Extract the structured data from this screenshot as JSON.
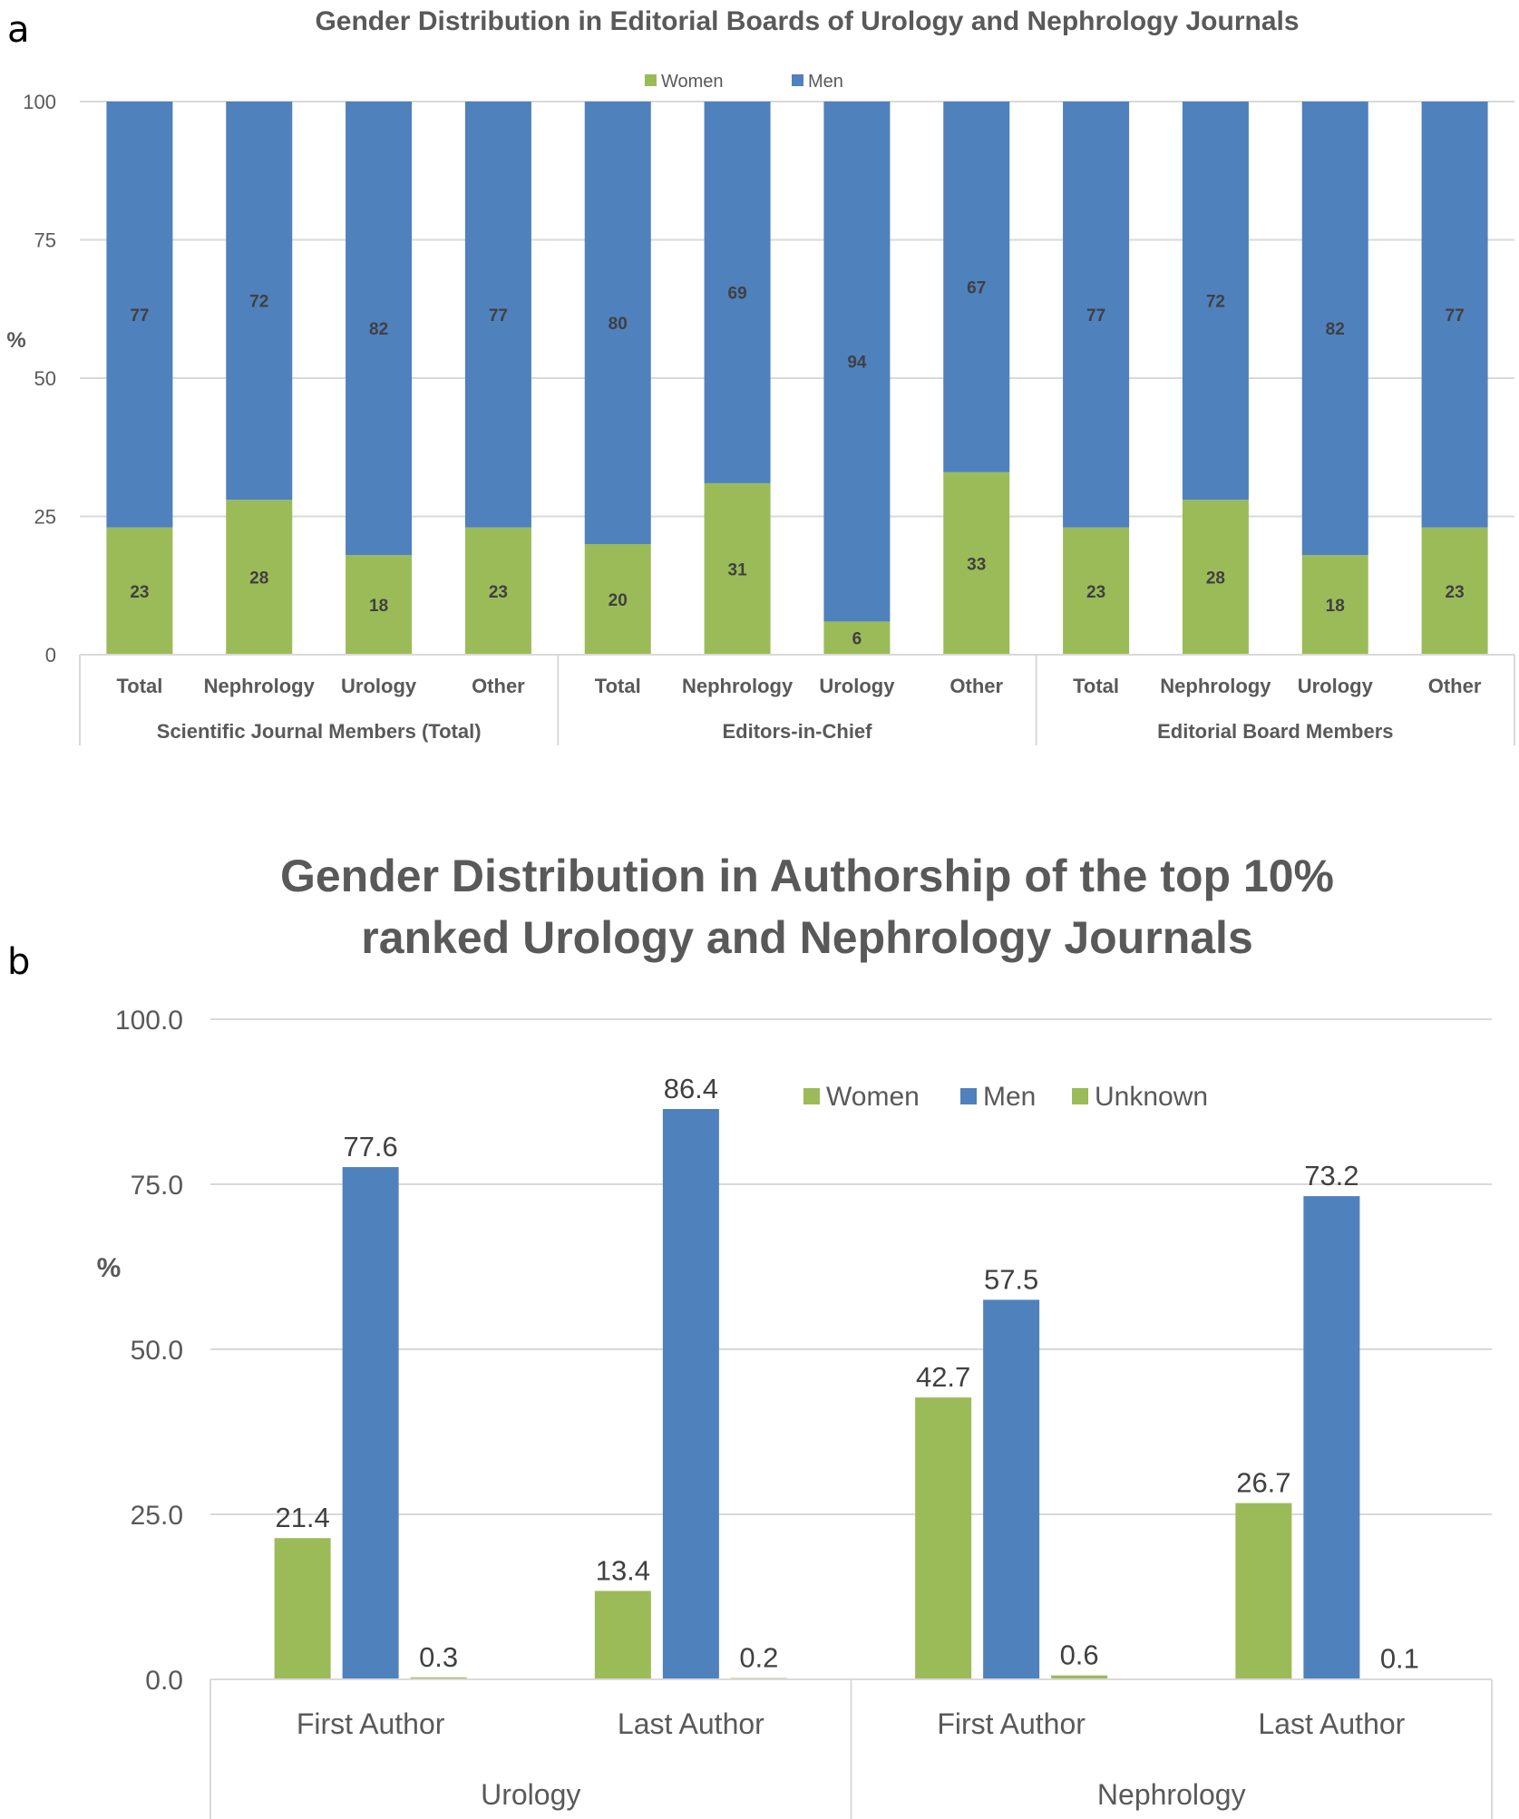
{
  "panels": {
    "a_letter": "a",
    "b_letter": "b"
  },
  "colors": {
    "women": "#9BBB59",
    "men": "#4F81BD",
    "unknown": "#9BBB59",
    "grid": "#D9D9D9",
    "text": "#595959"
  },
  "chart_data": [
    {
      "type": "bar",
      "stacked": true,
      "title": "Gender Distribution in Editorial Boards of Urology and Nephrology Journals",
      "ylabel": "%",
      "xlabel": "",
      "ylim": [
        0,
        100
      ],
      "yticks": [
        "0",
        "25",
        "50",
        "75",
        "100"
      ],
      "grid": true,
      "legend_position": "top-center",
      "legend": [
        "Women",
        "Men"
      ],
      "groups": [
        {
          "name": "Scientific Journal Members (Total)",
          "categories": [
            "Total",
            "Nephrology",
            "Urology",
            "Other"
          ]
        },
        {
          "name": "Editors-in-Chief",
          "categories": [
            "Total",
            "Nephrology",
            "Urology",
            "Other"
          ]
        },
        {
          "name": "Editorial Board Members",
          "categories": [
            "Total",
            "Nephrology",
            "Urology",
            "Other"
          ]
        }
      ],
      "series": [
        {
          "name": "Women",
          "values": [
            23,
            28,
            18,
            23,
            20,
            31,
            6,
            33,
            23,
            28,
            18,
            23
          ]
        },
        {
          "name": "Men",
          "values": [
            77,
            72,
            82,
            77,
            80,
            69,
            94,
            67,
            77,
            72,
            82,
            77
          ]
        }
      ]
    },
    {
      "type": "bar",
      "stacked": false,
      "title": "Gender Distribution in Authorship of the top 10%",
      "title_line2": "ranked Urology and Nephrology Journals",
      "ylabel": "%",
      "xlabel": "",
      "ylim": [
        0,
        100
      ],
      "yticks": [
        "0.0",
        "25.0",
        "50.0",
        "75.0",
        "100.0"
      ],
      "grid": true,
      "legend_position": "top-right",
      "legend": [
        "Women",
        "Men",
        "Unknown"
      ],
      "groups": [
        {
          "name": "Urology",
          "categories": [
            "First Author",
            "Last Author"
          ]
        },
        {
          "name": "Nephrology",
          "categories": [
            "First Author",
            "Last Author"
          ]
        }
      ],
      "series": [
        {
          "name": "Women",
          "values": [
            21.4,
            13.4,
            42.7,
            26.7
          ],
          "labels": [
            "21.4",
            "13.4",
            "42.7",
            "26.7"
          ]
        },
        {
          "name": "Men",
          "values": [
            77.6,
            86.4,
            57.5,
            73.2
          ],
          "labels": [
            "77.6",
            "86.4",
            "57.5",
            "73.2"
          ]
        },
        {
          "name": "Unknown",
          "values": [
            0.3,
            0.2,
            0.6,
            0.1
          ],
          "labels": [
            "0.3",
            "0.2",
            "0.6",
            "0.1"
          ]
        }
      ]
    }
  ]
}
